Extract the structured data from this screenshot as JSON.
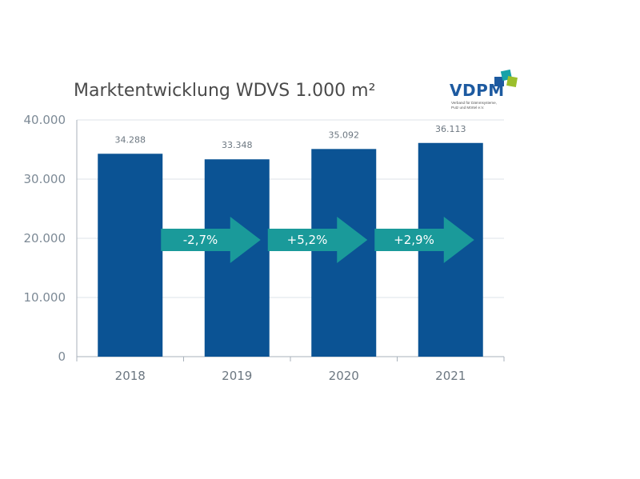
{
  "chart_data": {
    "type": "bar",
    "title": "Marktentwicklung WDVS 1.000 m²",
    "categories": [
      "2018",
      "2019",
      "2020",
      "2021"
    ],
    "values": [
      34288,
      33348,
      35092,
      36113
    ],
    "value_labels": [
      "34.288",
      "33.348",
      "35.092",
      "36.113"
    ],
    "y_ticks": [
      0,
      10000,
      20000,
      30000,
      40000
    ],
    "y_tick_labels": [
      "0",
      "10.000",
      "20.000",
      "30.000",
      "40.000"
    ],
    "ylim": [
      0,
      40000
    ],
    "grid": true,
    "changes": [
      {
        "label": "-2,7%",
        "from": "2018",
        "to": "2019"
      },
      {
        "label": "+5,2%",
        "from": "2019",
        "to": "2020"
      },
      {
        "label": "+2,9%",
        "from": "2020",
        "to": "2021"
      }
    ],
    "bar_color": "#0b5394",
    "arrow_color": "#1a9a9a"
  },
  "logo": {
    "word": "VDPM",
    "sub_line1": "Verband für Dämmsysteme,",
    "sub_line2": "Putz und Mörtel e.V.",
    "colors": [
      "#1d5aa0",
      "#17a2a8",
      "#9bbf2c"
    ]
  }
}
